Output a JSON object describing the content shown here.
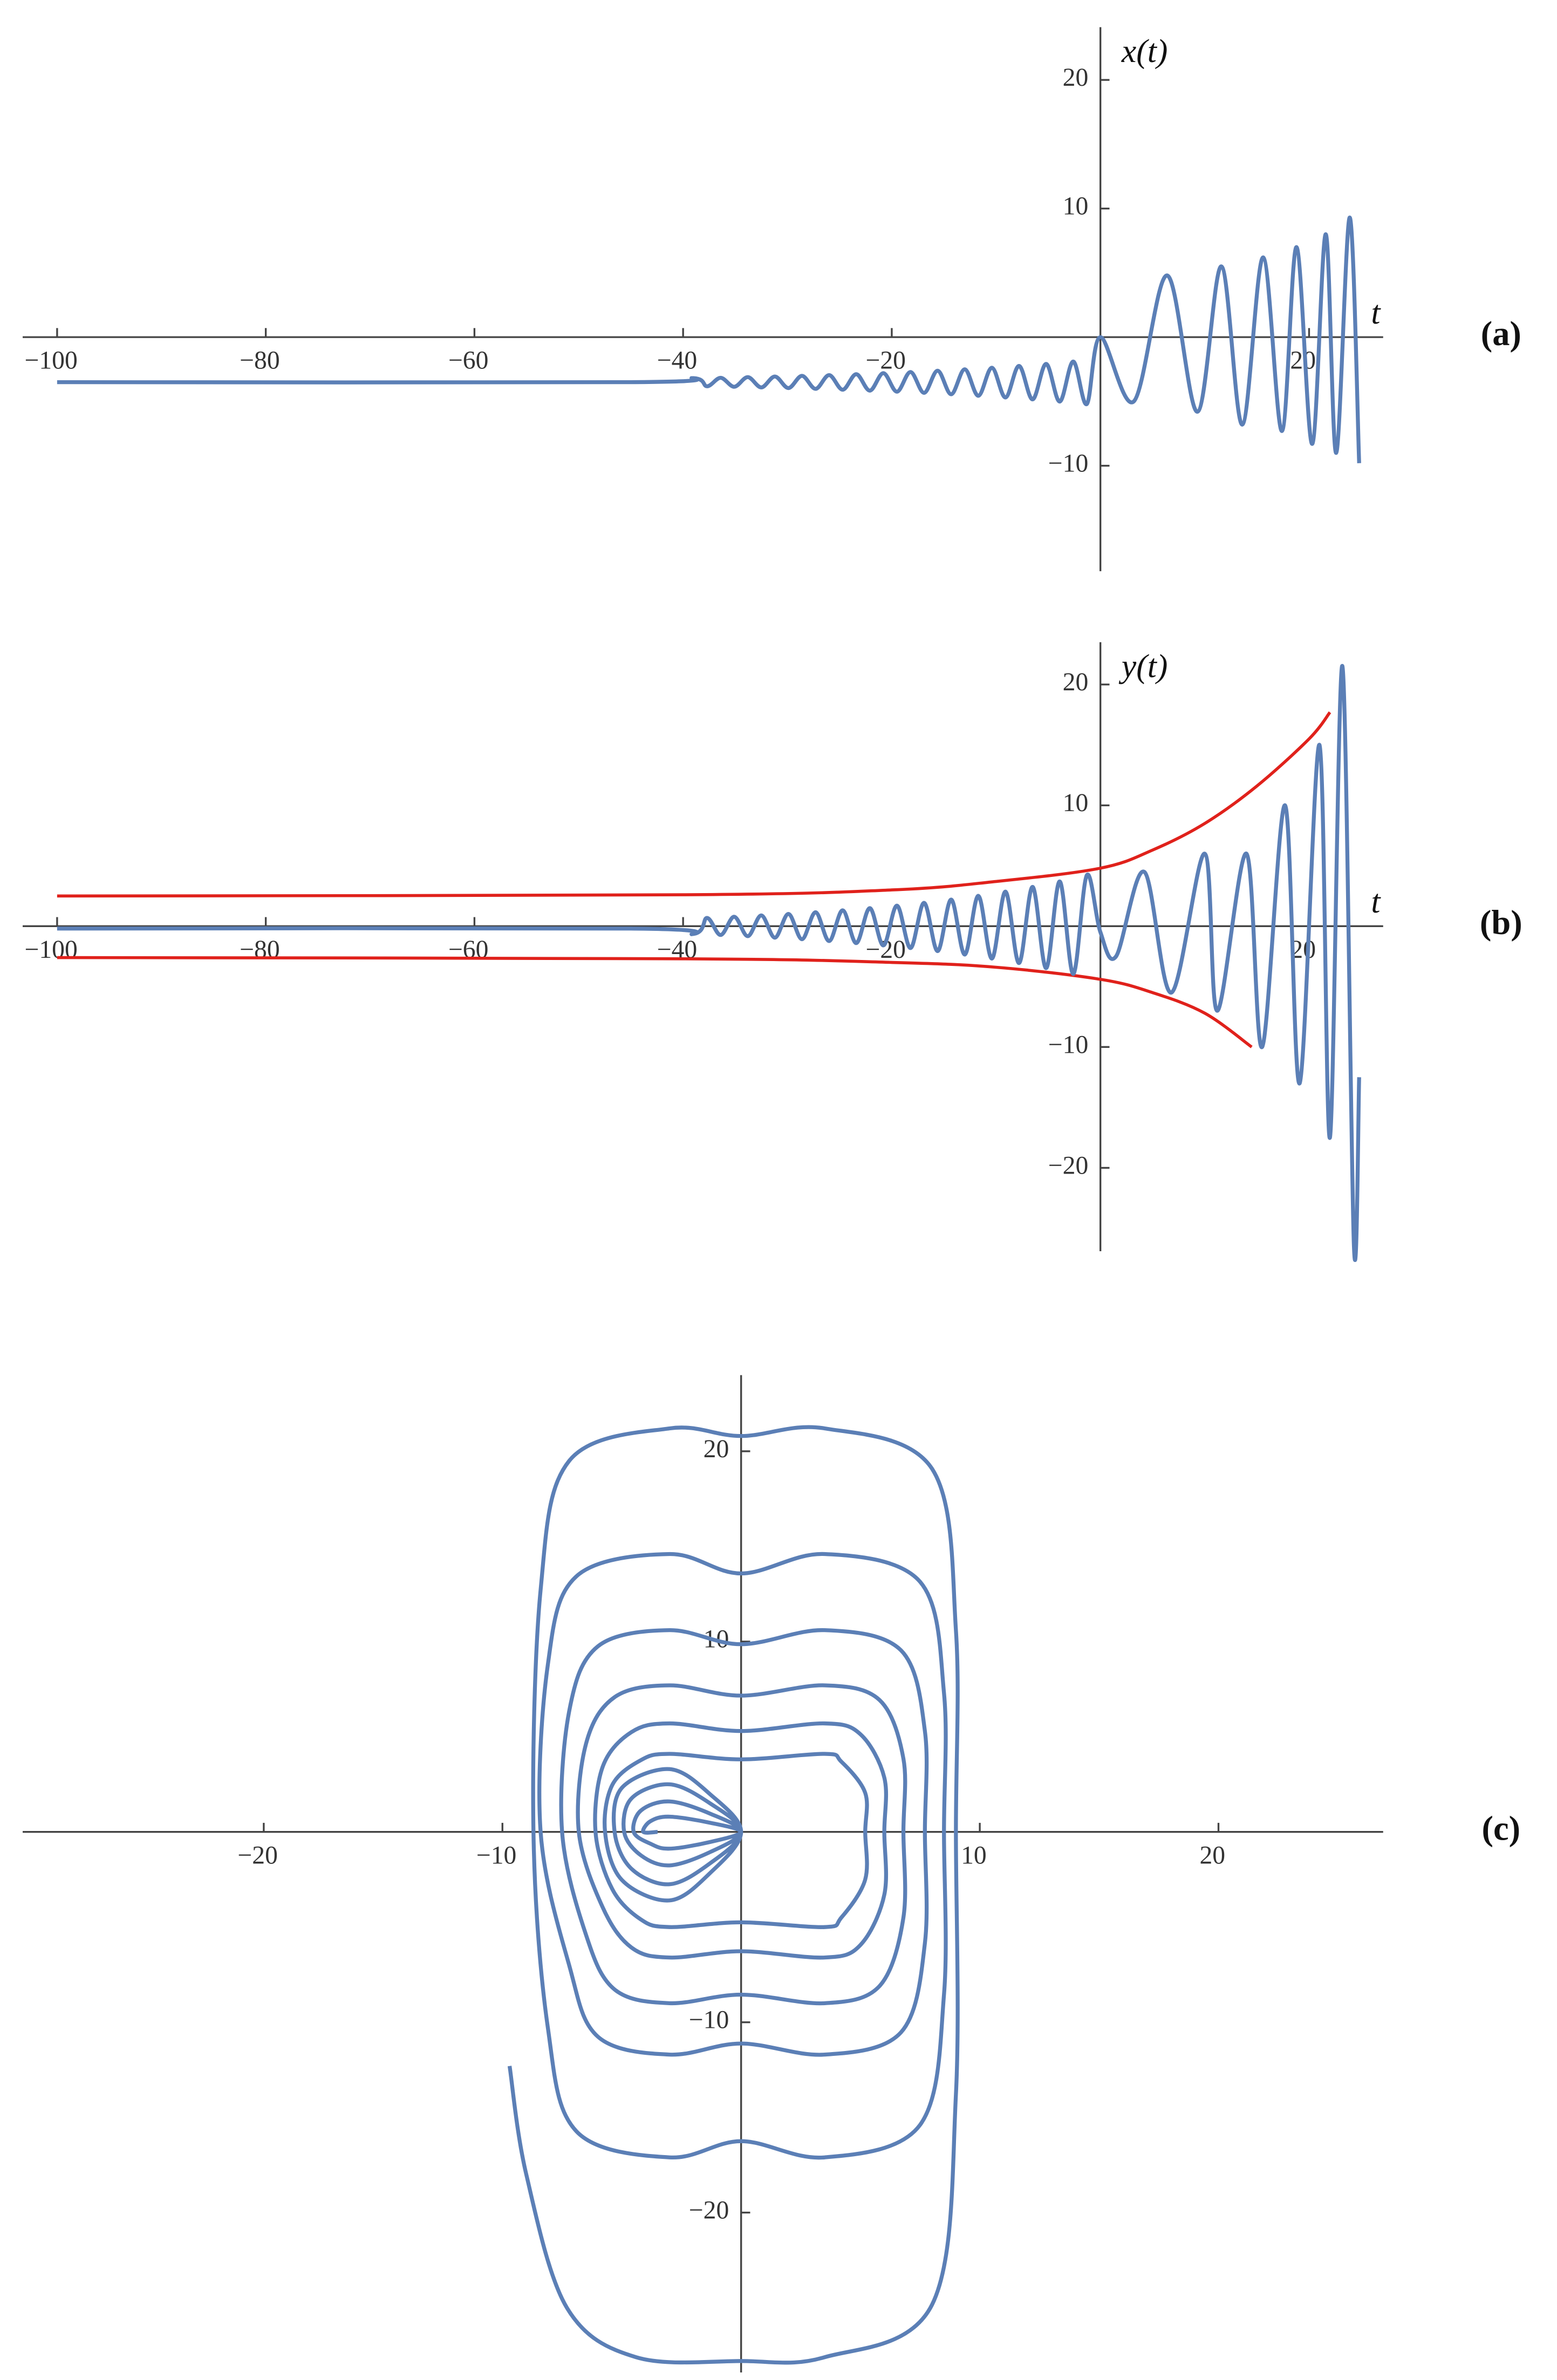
{
  "chart_data": [
    {
      "type": "line",
      "panel_label": "(a)",
      "x_label": "t",
      "y_label": "x(t)",
      "xlim": [
        -103.3,
        27.1
      ],
      "ylim": [
        -18.2,
        24.1
      ],
      "xticks": [
        {
          "value": -100,
          "label": "−100"
        },
        {
          "value": -80,
          "label": "−80"
        },
        {
          "value": -60,
          "label": "−60"
        },
        {
          "value": -40,
          "label": "−40"
        },
        {
          "value": -20,
          "label": "−20"
        },
        20
      ],
      "yticks": [
        {
          "value": -10,
          "label": "−10"
        },
        10,
        20
      ],
      "series": [
        {
          "color": "#5b7fb6",
          "x": [
            -100,
            -45,
            -39,
            -37.7,
            -36.4,
            -35.1,
            -33.8,
            -32.5,
            -31.2,
            -29.9,
            -28.6,
            -27.3,
            -26,
            -24.7,
            -23.4,
            -22.1,
            -20.8,
            -19.5,
            -18.2,
            -16.9,
            -15.6,
            -14.3,
            -13,
            -11.7,
            -10.4,
            -9.1,
            -7.8,
            -6.5,
            -5.2,
            -3.9,
            -2.6,
            -1.3,
            0,
            3.2,
            6.4,
            9.3,
            11.6,
            13.6,
            15.6,
            17.4,
            18.8,
            20.3,
            21.6,
            22.6,
            23.9,
            24.8
          ],
          "values": [
            -3.5,
            -3.5,
            -3.19,
            -3.82,
            -3.16,
            -3.86,
            -3.11,
            -3.91,
            -3.06,
            -3.96,
            -3.01,
            -4.02,
            -2.95,
            -4.09,
            -2.88,
            -4.16,
            -2.8,
            -4.24,
            -2.71,
            -4.33,
            -2.61,
            -4.44,
            -2.5,
            -4.56,
            -2.38,
            -4.69,
            -2.24,
            -4.84,
            -2.08,
            -5.01,
            -1.9,
            -5.2,
            0,
            -5,
            4.8,
            -5.8,
            5.5,
            -6.8,
            6.2,
            -7.3,
            7,
            -8.3,
            8,
            -9,
            9.3,
            -9.8
          ]
        }
      ]
    },
    {
      "type": "line",
      "panel_label": "(b)",
      "x_label": "t",
      "y_label": "y(t)",
      "xlim": [
        -103.3,
        27.1
      ],
      "ylim": [
        -26.9,
        23.5
      ],
      "xticks": [
        {
          "value": -100,
          "label": "−100"
        },
        {
          "value": -80,
          "label": "−80"
        },
        {
          "value": -60,
          "label": "−60"
        },
        {
          "value": -40,
          "label": "−40"
        },
        {
          "value": -20,
          "label": "−20"
        },
        20
      ],
      "yticks": [
        {
          "value": -20,
          "label": "−20"
        },
        {
          "value": -10,
          "label": "−10"
        },
        10,
        20
      ],
      "series": [
        {
          "color": "#e0211b",
          "x": [
            -100,
            -40,
            -20,
            -10,
            0,
            5,
            10,
            15,
            20,
            22
          ],
          "values": [
            2.5,
            2.6,
            3.0,
            3.7,
            4.8,
            6.3,
            8.5,
            11.6,
            15.5,
            17.7
          ]
        },
        {
          "color": "#e0211b",
          "x": [
            -100,
            -40,
            -20,
            -10,
            0,
            5,
            10,
            14.5
          ],
          "values": [
            -2.6,
            -2.7,
            -3.0,
            -3.4,
            -4.4,
            -5.5,
            -7.2,
            -10
          ]
        },
        {
          "color": "#5b7fb6",
          "x": [
            -100,
            -45,
            -39,
            -37.7,
            -36.4,
            -35.1,
            -33.8,
            -32.5,
            -31.2,
            -29.9,
            -28.6,
            -27.3,
            -26,
            -24.7,
            -23.4,
            -22.1,
            -20.8,
            -19.5,
            -18.2,
            -16.9,
            -15.6,
            -14.3,
            -13,
            -11.7,
            -10.4,
            -9.1,
            -7.8,
            -6.5,
            -5.2,
            -3.9,
            -2.6,
            -1.3,
            0,
            1.5,
            4.2,
            6.8,
            10,
            11.2,
            14,
            15.5,
            17.7,
            19.1,
            21,
            22,
            23.2,
            24.3,
            24.8
          ],
          "values": [
            -0.2,
            -0.2,
            -0.64,
            0.68,
            -0.73,
            0.78,
            -0.83,
            0.89,
            -0.95,
            1.01,
            -1.08,
            1.15,
            -1.23,
            1.31,
            -1.4,
            1.49,
            -1.59,
            1.7,
            -1.81,
            1.93,
            -2.06,
            2.2,
            -2.35,
            2.51,
            -2.68,
            2.86,
            -3.05,
            3.25,
            -3.47,
            3.7,
            -3.95,
            4.22,
            -0.5,
            -2.5,
            4.5,
            -5.5,
            6,
            -7,
            6,
            -10,
            10,
            -13,
            15,
            -17.5,
            21.5,
            -26.5,
            -12.5
          ]
        }
      ]
    },
    {
      "type": "line",
      "panel_label": "(c)",
      "xlim": [
        -30.1,
        26.9
      ],
      "ylim": [
        -28.4,
        24
      ],
      "xticks": [
        {
          "value": -20,
          "label": "−20"
        },
        {
          "value": -10,
          "label": "−10"
        },
        10,
        20
      ],
      "yticks": [
        {
          "value": -20,
          "label": "−20"
        },
        {
          "value": -10,
          "label": "−10"
        },
        10,
        20
      ],
      "series": [
        {
          "color": "#5b7fb6",
          "x": [
            -3.5,
            -4.1,
            -3.8,
            -3,
            -1.3,
            0,
            -1.3,
            -3,
            -3.8,
            -4.5,
            -4.2,
            -3,
            -1.3,
            0,
            -1.3,
            -3,
            -4.2,
            -4.9,
            -4.6,
            -3,
            -1.3,
            0,
            -1.3,
            -3,
            -4.6,
            -5.3,
            -5,
            -3,
            -1.3,
            0,
            -1.3,
            -3,
            -5,
            -5.7,
            -5.4,
            -4.2,
            -3,
            0,
            3.5,
            4.2,
            5.2,
            5.2,
            5.2,
            4.2,
            3.5,
            0,
            -3,
            -4.2,
            -5.4,
            -6.1,
            -5.8,
            -4.6,
            -3,
            0,
            3.5,
            5,
            6,
            6,
            6,
            5,
            3.5,
            0,
            -3,
            -4.6,
            -5.8,
            -6.8,
            -6.5,
            -5.3,
            -3,
            0,
            3.5,
            5.8,
            6.8,
            6.8,
            6.8,
            5.8,
            3.5,
            0,
            -3,
            -5.3,
            -6.5,
            -7.5,
            -7.2,
            -6,
            -3,
            0,
            3.5,
            6.7,
            7.7,
            7.7,
            7.7,
            6.7,
            3.5,
            0,
            -3,
            -6,
            -7.2,
            -8.4,
            -8.1,
            -6.9,
            -3,
            0,
            3.5,
            7.5,
            8.5,
            8.5,
            8.5,
            7.5,
            3.5,
            0,
            -3,
            -6.9,
            -8.1,
            -8.7,
            -8.4,
            -7.2,
            -3,
            0,
            3.5,
            8,
            9,
            9,
            9,
            8,
            3.5,
            0,
            -4.4,
            -7.3,
            -9,
            -9.7
          ],
          "values": [
            0,
            0,
            0.56,
            0.8,
            0.48,
            0,
            -0.53,
            -0.88,
            -0.62,
            0,
            1.12,
            1.6,
            0.96,
            0,
            -1.06,
            -1.76,
            -1.23,
            0,
            1.75,
            2.5,
            1.5,
            0,
            -1.65,
            -2.75,
            -1.93,
            0,
            2.31,
            3.3,
            1.98,
            0,
            -2.16,
            -3.6,
            -2.52,
            0,
            2.46,
            3.77,
            4.1,
            3.81,
            4.1,
            3.69,
            2.05,
            0,
            -2.5,
            -4.5,
            -5,
            -4.75,
            -5,
            -4.6,
            -3,
            0,
            3.42,
            5.24,
            5.7,
            5.3,
            5.7,
            5.13,
            2.85,
            0,
            -3.3,
            -5.94,
            -6.6,
            -6.27,
            -6.6,
            -6.07,
            -3.96,
            0,
            4.62,
            7.08,
            7.7,
            7.16,
            7.7,
            6.93,
            3.85,
            0,
            -4.5,
            -8.1,
            -9,
            -8.55,
            -9,
            -8.28,
            -5.4,
            0,
            6.36,
            9.75,
            10.6,
            9.86,
            10.6,
            9.54,
            5.3,
            0,
            -5.85,
            -10.53,
            -11.7,
            -11.12,
            -11.7,
            -10.76,
            -7.02,
            0,
            8.76,
            13.43,
            14.6,
            13.58,
            14.6,
            13.14,
            7.3,
            0,
            -8.55,
            -15.39,
            -17.1,
            -16.25,
            -17.1,
            -15.73,
            -10.26,
            0,
            12.72,
            19.5,
            21.2,
            20.8,
            21.2,
            19.08,
            10.6,
            0,
            -13.8,
            -24.84,
            -27.6,
            -27.8,
            -27.6,
            -25,
            -18,
            -12.3
          ]
        }
      ]
    }
  ]
}
